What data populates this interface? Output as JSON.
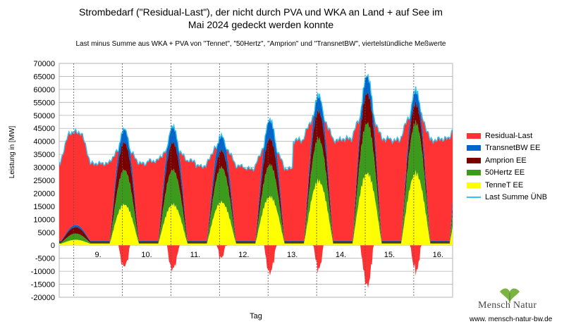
{
  "title_line1": "Strombedarf (\"Residual-Last\"), der nicht durch PVA und WKA an Land + auf See im",
  "title_line2": "Mai 2024 gedeckt werden konnte",
  "subtitle": "Last minus Summe aus WKA + PVA von \"Tennet\", \"50Hertz\", \"Amprion\" und \"TransnetBW\", viertelstündliche Meßwerte",
  "logo": {
    "name": "Mensch Natur",
    "url": "www. mensch-natur-bw.de",
    "leaf_icon": "ginkgo-leaf-icon"
  },
  "chart_data": {
    "type": "area",
    "title": "Strombedarf (\"Residual-Last\"), der nicht durch PVA und WKA an Land + auf See im Mai 2024 gedeckt werden konnte",
    "subtitle": "Last minus Summe aus WKA + PVA von \"Tennet\", \"50Hertz\", \"Amprion\" und \"TransnetBW\", viertelstündliche Meßwerte",
    "xlabel": "Tag",
    "ylabel": "Leistung in [MW]",
    "ylim": [
      -20000,
      70000
    ],
    "yticks": [
      -20000,
      -15000,
      -10000,
      -5000,
      0,
      5000,
      10000,
      15000,
      20000,
      25000,
      30000,
      35000,
      40000,
      45000,
      50000,
      55000,
      60000,
      65000,
      70000
    ],
    "ytick_labels": [
      "-20000",
      "-15000",
      "-10000",
      "-5000",
      "0",
      "5000",
      "10000",
      "15000",
      "20000",
      "25000",
      "30000",
      "35000",
      "40000",
      "45000",
      "50000",
      "55000",
      "60000",
      "65000",
      "70000"
    ],
    "xlim": [
      8.2,
      16.3
    ],
    "day_labels": [
      "9.",
      "10.",
      "11.",
      "12.",
      "13.",
      "14.",
      "15.",
      "16."
    ],
    "day_positions": [
      9,
      10,
      11,
      12,
      13,
      14,
      15,
      16
    ],
    "grid": true,
    "legend_position": "right",
    "series": [
      {
        "name": "Residual-Last",
        "color": "#ff3333",
        "kind": "area"
      },
      {
        "name": "TransnetBW EE",
        "color": "#0066cc",
        "kind": "stack"
      },
      {
        "name": "Amprion EE",
        "color": "#7b0000",
        "kind": "stack"
      },
      {
        "name": "50Hertz EE",
        "color": "#3c9a1c",
        "kind": "stack"
      },
      {
        "name": "TenneT EE",
        "color": "#ffff00",
        "kind": "stack"
      },
      {
        "name": "Last Summe ÜNB",
        "color": "#33c3f0",
        "kind": "line"
      }
    ],
    "daily_profile": [
      {
        "day": "8.",
        "load_day_max": 43500,
        "load_night_min": 31500,
        "tennet_peak": 1500,
        "hertz_peak": 3500,
        "amprion_peak": 5500,
        "transnet_peak": 6000,
        "residual_min": 1000
      },
      {
        "day": "9.",
        "load_day_max": 36500,
        "load_night_min": 31500,
        "tennet_peak": 15000,
        "hertz_peak": 28000,
        "amprion_peak": 38000,
        "transnet_peak": 43000,
        "residual_min": -6500
      },
      {
        "day": "10.",
        "load_day_max": 36500,
        "load_night_min": 32500,
        "tennet_peak": 15000,
        "hertz_peak": 28000,
        "amprion_peak": 38000,
        "transnet_peak": 44000,
        "residual_min": -7000
      },
      {
        "day": "11.",
        "load_day_max": 37500,
        "load_night_min": 30500,
        "tennet_peak": 16000,
        "hertz_peak": 29000,
        "amprion_peak": 35000,
        "transnet_peak": 40500,
        "residual_min": -10000
      },
      {
        "day": "12.",
        "load_day_max": 38000,
        "load_night_min": 29500,
        "tennet_peak": 18000,
        "hertz_peak": 30000,
        "amprion_peak": 39500,
        "transnet_peak": 46500,
        "residual_min": -10500
      },
      {
        "day": "13.",
        "load_day_max": 49000,
        "load_night_min": 40500,
        "tennet_peak": 24000,
        "hertz_peak": 40000,
        "amprion_peak": 50000,
        "transnet_peak": 56000,
        "residual_min": -7500
      },
      {
        "day": "14.",
        "load_day_max": 50000,
        "load_night_min": 41000,
        "tennet_peak": 27000,
        "hertz_peak": 46000,
        "amprion_peak": 57000,
        "transnet_peak": 63500,
        "residual_min": -15500
      },
      {
        "day": "15.",
        "load_day_max": 50000,
        "load_night_min": 40500,
        "tennet_peak": 27000,
        "hertz_peak": 46000,
        "amprion_peak": 53000,
        "transnet_peak": 58000,
        "residual_min": -2500
      },
      {
        "day": "16.",
        "load_day_max": 48500,
        "load_night_min": 41000,
        "tennet_peak": 23000,
        "hertz_peak": 41000,
        "amprion_peak": 47000,
        "transnet_peak": 54000,
        "residual_min": -6000
      }
    ]
  }
}
